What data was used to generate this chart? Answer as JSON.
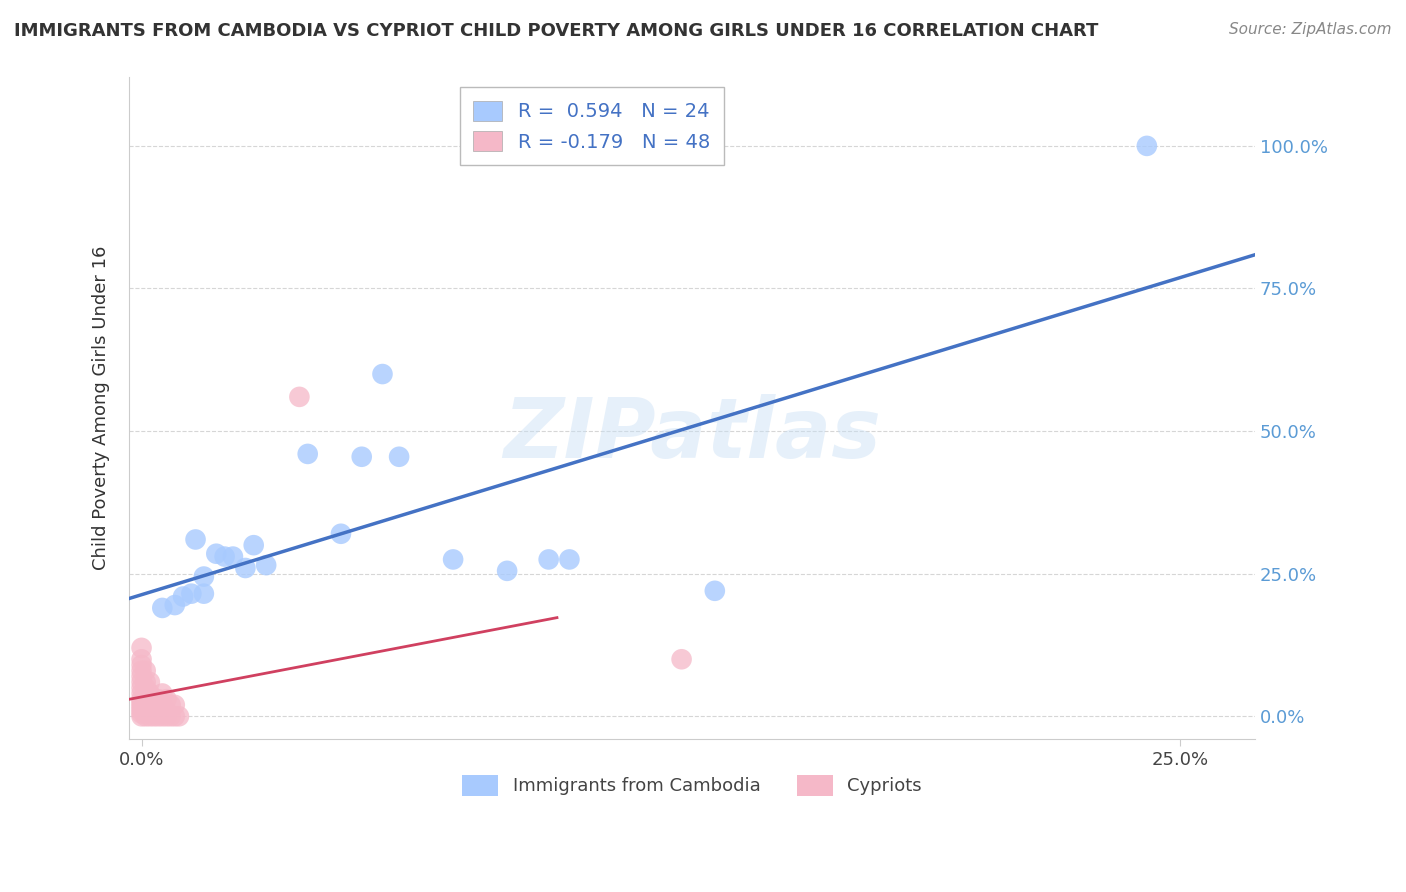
{
  "title": "IMMIGRANTS FROM CAMBODIA VS CYPRIOT CHILD POVERTY AMONG GIRLS UNDER 16 CORRELATION CHART",
  "source": "Source: ZipAtlas.com",
  "ylabel_label": "Child Poverty Among Girls Under 16",
  "xlim": [
    -0.003,
    0.268
  ],
  "ylim": [
    -0.04,
    1.12
  ],
  "legend_label1": "Immigrants from Cambodia",
  "legend_label2": "Cypriots",
  "r1": 0.594,
  "n1": 24,
  "r2": -0.179,
  "n2": 48,
  "color_blue": "#A8CAFE",
  "color_pink": "#F5B8C8",
  "line_color_blue": "#4472C4",
  "line_color_pink": "#D04060",
  "blue_x": [
    0.005,
    0.008,
    0.01,
    0.012,
    0.013,
    0.015,
    0.015,
    0.018,
    0.02,
    0.022,
    0.025,
    0.027,
    0.03,
    0.04,
    0.048,
    0.053,
    0.058,
    0.062,
    0.075,
    0.088,
    0.098,
    0.103,
    0.138,
    0.242
  ],
  "blue_y": [
    0.19,
    0.195,
    0.21,
    0.215,
    0.31,
    0.215,
    0.245,
    0.285,
    0.28,
    0.28,
    0.26,
    0.3,
    0.265,
    0.46,
    0.32,
    0.455,
    0.6,
    0.455,
    0.275,
    0.255,
    0.275,
    0.275,
    0.22,
    1.0
  ],
  "pink_x": [
    0.0,
    0.0,
    0.0,
    0.0,
    0.0,
    0.0,
    0.0,
    0.0,
    0.0,
    0.0,
    0.0,
    0.0,
    0.0,
    0.0,
    0.0,
    0.001,
    0.001,
    0.001,
    0.001,
    0.001,
    0.001,
    0.001,
    0.001,
    0.002,
    0.002,
    0.002,
    0.002,
    0.002,
    0.003,
    0.003,
    0.003,
    0.004,
    0.004,
    0.004,
    0.005,
    0.005,
    0.005,
    0.005,
    0.006,
    0.006,
    0.006,
    0.007,
    0.007,
    0.008,
    0.008,
    0.009,
    0.038,
    0.13
  ],
  "pink_y": [
    0.0,
    0.005,
    0.01,
    0.015,
    0.02,
    0.025,
    0.03,
    0.04,
    0.05,
    0.06,
    0.07,
    0.08,
    0.09,
    0.1,
    0.12,
    0.0,
    0.01,
    0.02,
    0.03,
    0.04,
    0.05,
    0.06,
    0.08,
    0.0,
    0.01,
    0.02,
    0.04,
    0.06,
    0.0,
    0.01,
    0.03,
    0.0,
    0.01,
    0.03,
    0.0,
    0.01,
    0.02,
    0.04,
    0.0,
    0.01,
    0.03,
    0.0,
    0.02,
    0.0,
    0.02,
    0.0,
    0.56,
    0.1
  ]
}
